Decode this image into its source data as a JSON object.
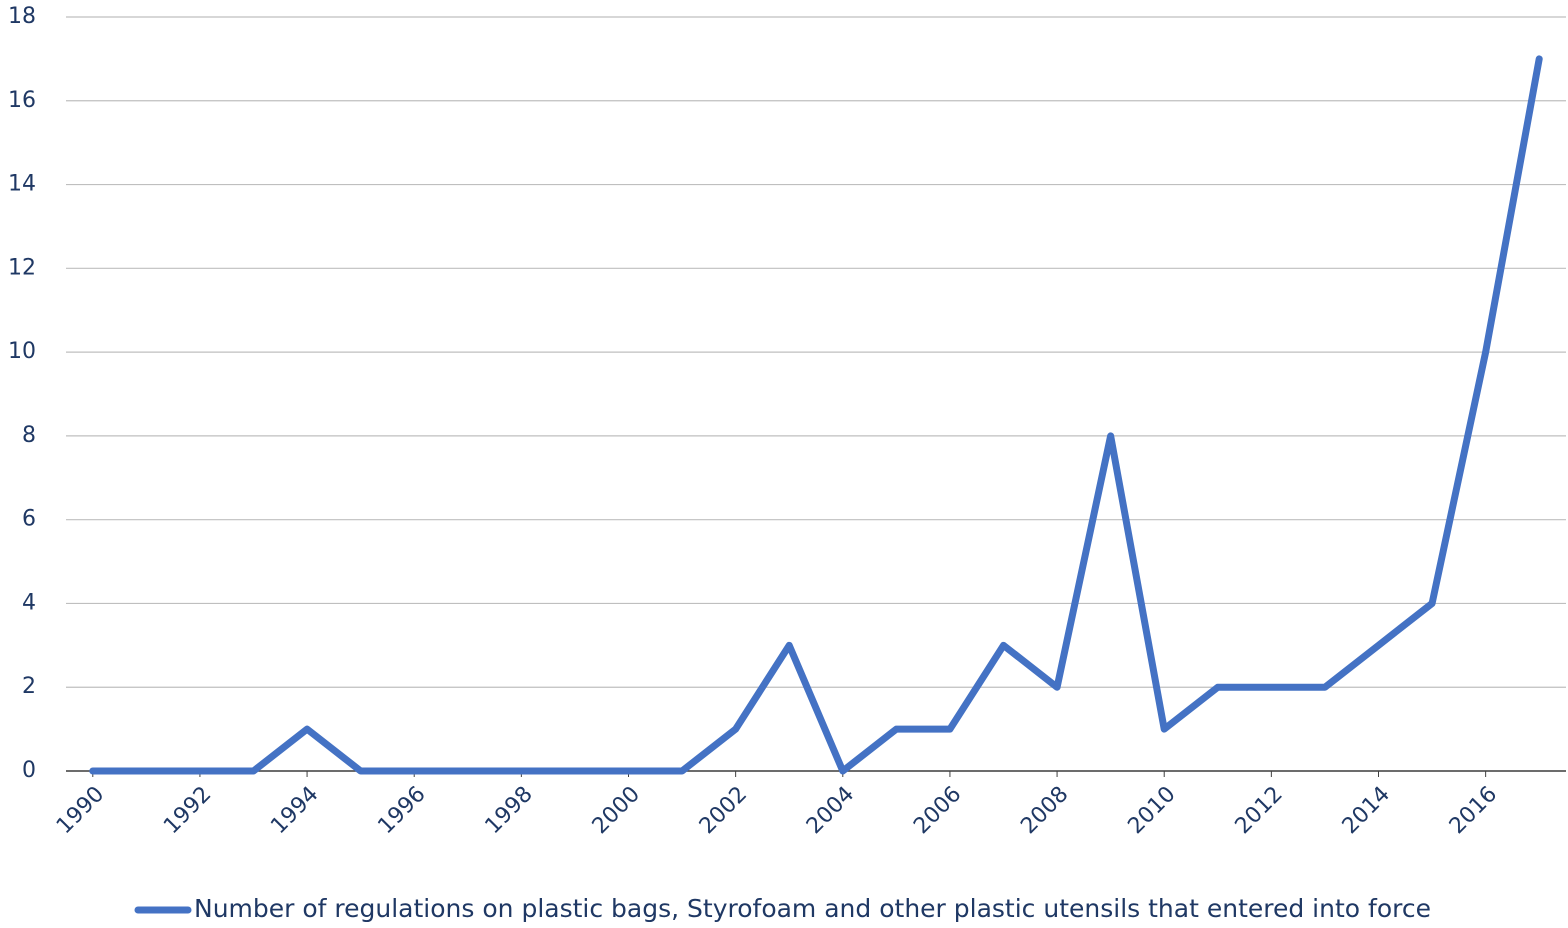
{
  "chart_data": {
    "type": "line",
    "x": [
      1990,
      1991,
      1992,
      1993,
      1994,
      1995,
      1996,
      1997,
      1998,
      1999,
      2000,
      2001,
      2002,
      2003,
      2004,
      2005,
      2006,
      2007,
      2008,
      2009,
      2010,
      2011,
      2012,
      2013,
      2014,
      2015,
      2016,
      2017
    ],
    "series": [
      {
        "name": "Number of regulations on plastic bags, Styrofoam and other plastic utensils that entered into force",
        "color": "#4472c4",
        "values": [
          0,
          0,
          0,
          0,
          1,
          0,
          0,
          0,
          0,
          0,
          0,
          0,
          1,
          3,
          0,
          1,
          1,
          3,
          2,
          8,
          1,
          2,
          2,
          2,
          3,
          4,
          10,
          17
        ]
      }
    ],
    "xlim": [
      1989.5,
      2017.5
    ],
    "xticks": [
      1990,
      1992,
      1994,
      1996,
      1998,
      2000,
      2002,
      2004,
      2006,
      2008,
      2010,
      2012,
      2014,
      2016
    ],
    "ylim": [
      0,
      18
    ],
    "yticks": [
      0,
      2,
      4,
      6,
      8,
      10,
      12,
      14,
      16,
      18
    ],
    "grid": true,
    "legend": "bottom"
  }
}
